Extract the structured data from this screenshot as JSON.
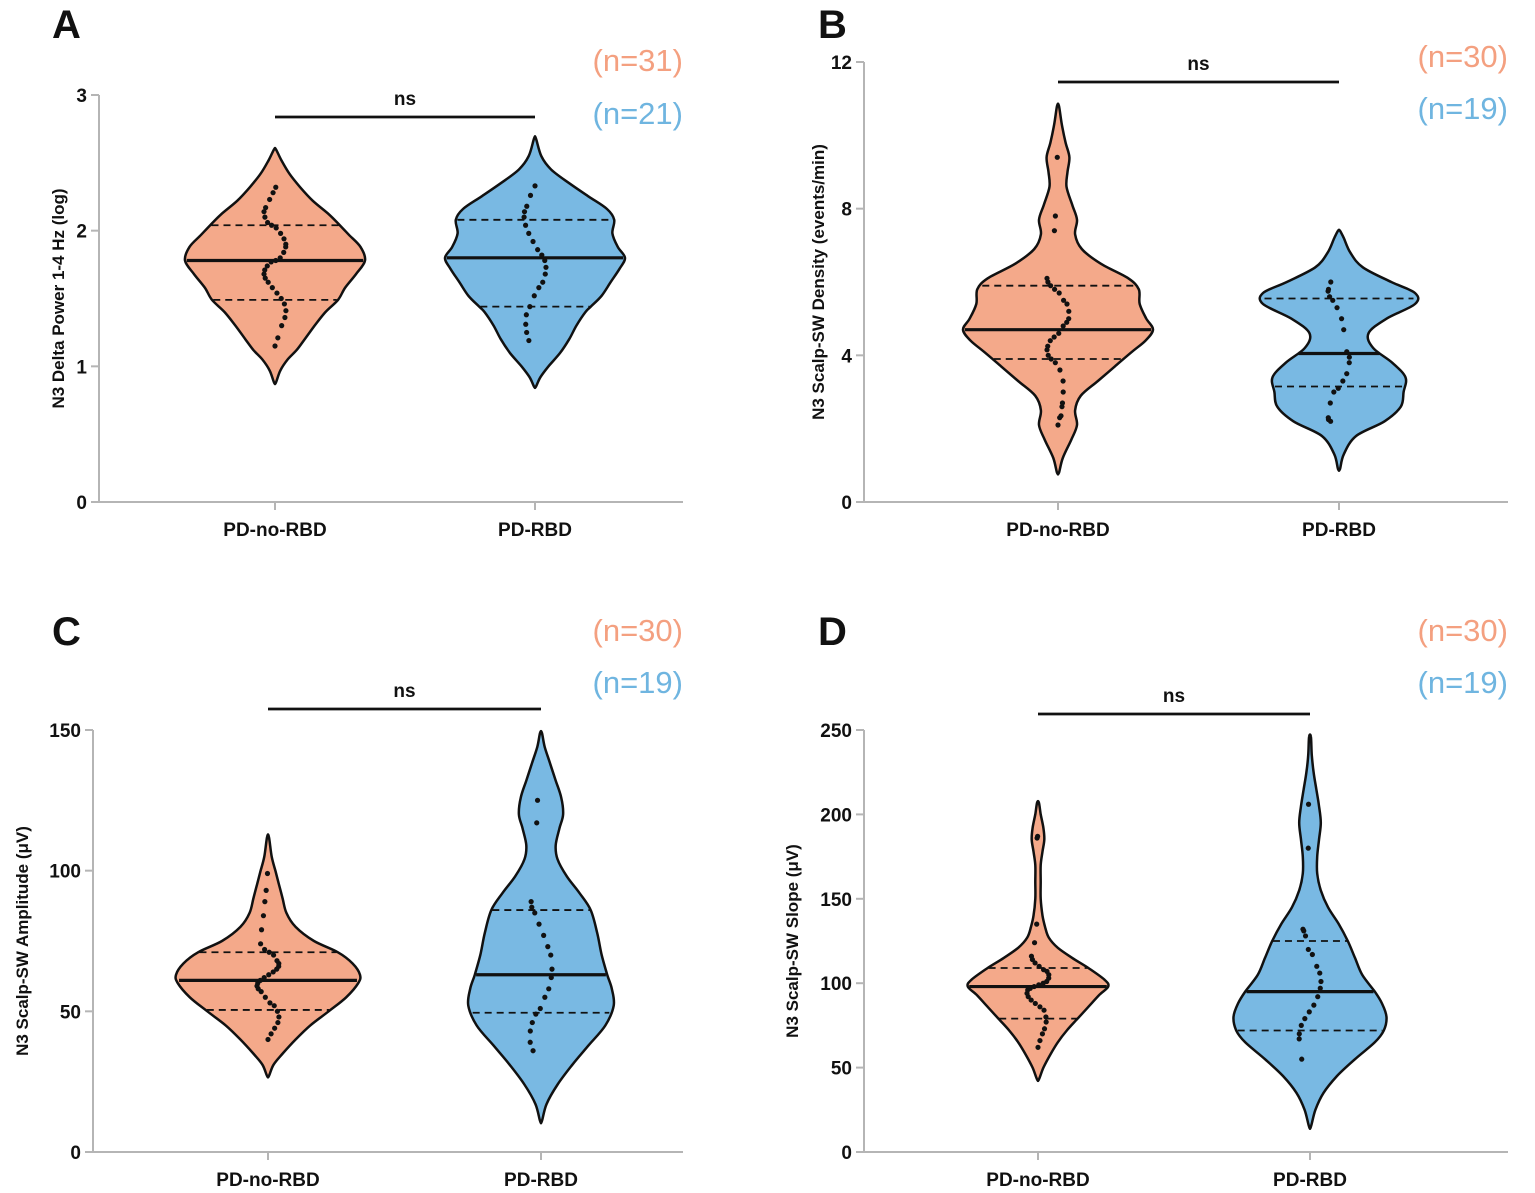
{
  "colors": {
    "group1": "#f4a98a",
    "group2": "#79b9e3",
    "n_group1": "#f4a080",
    "n_group2": "#6fb5e0",
    "axis": "#b5b5b5",
    "ink": "#111111"
  },
  "chart_data": [
    {
      "panel": "A",
      "type": "violin",
      "ylabel": "N3 Delta Power 1-4 Hz (log)",
      "ylim": [
        0,
        3
      ],
      "yticks": [
        "0",
        "1",
        "2",
        "3"
      ],
      "categories": [
        "PD-no-RBD",
        "PD-RBD"
      ],
      "n_labels": [
        "(n=31)",
        "(n=21)"
      ],
      "significance": "ns",
      "series": [
        {
          "name": "PD-no-RBD",
          "median": 1.78,
          "q1": 1.49,
          "q3": 2.04,
          "profile": [
            [
              0.88,
              0.01
            ],
            [
              0.97,
              0.06
            ],
            [
              1.05,
              0.14
            ],
            [
              1.12,
              0.24
            ],
            [
              1.2,
              0.33
            ],
            [
              1.3,
              0.44
            ],
            [
              1.4,
              0.56
            ],
            [
              1.49,
              0.7
            ],
            [
              1.58,
              0.78
            ],
            [
              1.68,
              0.9
            ],
            [
              1.78,
              1.0
            ],
            [
              1.88,
              0.95
            ],
            [
              1.97,
              0.82
            ],
            [
              2.04,
              0.72
            ],
            [
              2.12,
              0.6
            ],
            [
              2.22,
              0.42
            ],
            [
              2.32,
              0.28
            ],
            [
              2.42,
              0.16
            ],
            [
              2.52,
              0.07
            ],
            [
              2.6,
              0.01
            ]
          ],
          "points": [
            1.15,
            1.21,
            1.3,
            1.36,
            1.41,
            1.46,
            1.5,
            1.54,
            1.58,
            1.62,
            1.65,
            1.68,
            1.71,
            1.74,
            1.77,
            1.78,
            1.8,
            1.84,
            1.88,
            1.9,
            1.94,
            1.98,
            2.02,
            2.04,
            2.06,
            2.1,
            2.14,
            2.17,
            2.23,
            2.28,
            2.32
          ]
        },
        {
          "name": "PD-RBD",
          "median": 1.8,
          "q1": 1.44,
          "q3": 2.08,
          "profile": [
            [
              0.85,
              0.01
            ],
            [
              0.92,
              0.06
            ],
            [
              1.0,
              0.15
            ],
            [
              1.1,
              0.28
            ],
            [
              1.2,
              0.38
            ],
            [
              1.3,
              0.46
            ],
            [
              1.4,
              0.56
            ],
            [
              1.44,
              0.62
            ],
            [
              1.52,
              0.74
            ],
            [
              1.62,
              0.84
            ],
            [
              1.72,
              0.94
            ],
            [
              1.8,
              1.0
            ],
            [
              1.88,
              0.92
            ],
            [
              1.98,
              0.86
            ],
            [
              2.08,
              0.88
            ],
            [
              2.16,
              0.8
            ],
            [
              2.25,
              0.6
            ],
            [
              2.35,
              0.38
            ],
            [
              2.45,
              0.18
            ],
            [
              2.55,
              0.07
            ],
            [
              2.68,
              0.01
            ]
          ],
          "points": [
            1.19,
            1.25,
            1.31,
            1.38,
            1.44,
            1.52,
            1.58,
            1.62,
            1.68,
            1.73,
            1.78,
            1.82,
            1.86,
            1.92,
            1.98,
            2.04,
            2.1,
            2.14,
            2.18,
            2.26,
            2.33
          ]
        }
      ]
    },
    {
      "panel": "B",
      "type": "violin",
      "ylabel": "N3 Scalp-SW Density  (events/min)",
      "ylim": [
        0,
        12
      ],
      "yticks": [
        "0",
        "4",
        "8",
        "12"
      ],
      "categories": [
        "PD-no-RBD",
        "PD-RBD"
      ],
      "n_labels": [
        "(n=30)",
        "(n=19)"
      ],
      "significance": "ns",
      "series": [
        {
          "name": "PD-no-RBD",
          "median": 4.7,
          "q1": 3.9,
          "q3": 5.9,
          "profile": [
            [
              0.8,
              0.01
            ],
            [
              1.2,
              0.05
            ],
            [
              1.7,
              0.14
            ],
            [
              2.1,
              0.2
            ],
            [
              2.5,
              0.18
            ],
            [
              2.9,
              0.24
            ],
            [
              3.3,
              0.42
            ],
            [
              3.7,
              0.6
            ],
            [
              4.1,
              0.78
            ],
            [
              4.4,
              0.92
            ],
            [
              4.7,
              1.0
            ],
            [
              5.0,
              0.93
            ],
            [
              5.4,
              0.86
            ],
            [
              5.8,
              0.85
            ],
            [
              6.1,
              0.74
            ],
            [
              6.5,
              0.45
            ],
            [
              6.9,
              0.25
            ],
            [
              7.3,
              0.18
            ],
            [
              7.7,
              0.2
            ],
            [
              8.1,
              0.15
            ],
            [
              8.6,
              0.09
            ],
            [
              9.0,
              0.1
            ],
            [
              9.4,
              0.12
            ],
            [
              9.8,
              0.08
            ],
            [
              10.3,
              0.04
            ],
            [
              10.8,
              0.01
            ]
          ],
          "points": [
            2.1,
            2.3,
            2.35,
            2.6,
            2.7,
            3.0,
            3.3,
            3.6,
            3.8,
            3.9,
            4.0,
            4.15,
            4.25,
            4.4,
            4.5,
            4.6,
            4.8,
            4.9,
            5.0,
            5.2,
            5.4,
            5.5,
            5.7,
            5.8,
            5.9,
            6.0,
            6.1,
            7.4,
            7.8,
            9.4
          ]
        },
        {
          "name": "PD-RBD",
          "median": 4.05,
          "q1": 3.15,
          "q3": 5.55,
          "profile": [
            [
              0.9,
              0.01
            ],
            [
              1.3,
              0.05
            ],
            [
              1.8,
              0.18
            ],
            [
              2.2,
              0.48
            ],
            [
              2.6,
              0.65
            ],
            [
              3.0,
              0.68
            ],
            [
              3.4,
              0.7
            ],
            [
              3.8,
              0.56
            ],
            [
              4.2,
              0.36
            ],
            [
              4.6,
              0.31
            ],
            [
              5.0,
              0.5
            ],
            [
              5.4,
              0.8
            ],
            [
              5.7,
              0.8
            ],
            [
              6.0,
              0.55
            ],
            [
              6.4,
              0.25
            ],
            [
              6.8,
              0.12
            ],
            [
              7.2,
              0.05
            ],
            [
              7.4,
              0.01
            ]
          ],
          "points": [
            2.2,
            2.25,
            2.3,
            2.7,
            3.0,
            3.1,
            3.3,
            3.5,
            3.8,
            3.95,
            4.1,
            4.7,
            5.0,
            5.3,
            5.5,
            5.6,
            5.75,
            5.8,
            6.0
          ]
        }
      ]
    },
    {
      "panel": "C",
      "type": "violin",
      "ylabel": "N3 Scalp-SW Amplitude  (μV)",
      "ylim": [
        0,
        150
      ],
      "yticks": [
        "0",
        "50",
        "100",
        "150"
      ],
      "categories": [
        "PD-no-RBD",
        "PD-RBD"
      ],
      "n_labels": [
        "(n=30)",
        "(n=19)"
      ],
      "significance": "ns",
      "series": [
        {
          "name": "PD-no-RBD",
          "median": 61,
          "q1": 50.5,
          "q3": 71,
          "profile": [
            [
              27,
              0.01
            ],
            [
              31,
              0.06
            ],
            [
              35,
              0.16
            ],
            [
              40,
              0.3
            ],
            [
              45,
              0.46
            ],
            [
              50,
              0.66
            ],
            [
              55,
              0.85
            ],
            [
              60,
              0.98
            ],
            [
              63,
              1.0
            ],
            [
              67,
              0.92
            ],
            [
              71,
              0.76
            ],
            [
              75,
              0.5
            ],
            [
              80,
              0.3
            ],
            [
              85,
              0.2
            ],
            [
              90,
              0.16
            ],
            [
              95,
              0.12
            ],
            [
              100,
              0.08
            ],
            [
              105,
              0.04
            ],
            [
              112,
              0.01
            ]
          ],
          "points": [
            40,
            42,
            44,
            46,
            48,
            50,
            52,
            53,
            55,
            57,
            58,
            59,
            60,
            61,
            62,
            63,
            64,
            65,
            66,
            67,
            68,
            70,
            71,
            72,
            74,
            79,
            84,
            89,
            93,
            99
          ]
        },
        {
          "name": "PD-RBD",
          "median": 63,
          "q1": 49.5,
          "q3": 86,
          "profile": [
            [
              11,
              0.01
            ],
            [
              17,
              0.06
            ],
            [
              24,
              0.18
            ],
            [
              31,
              0.34
            ],
            [
              38,
              0.52
            ],
            [
              45,
              0.7
            ],
            [
              52,
              0.79
            ],
            [
              58,
              0.77
            ],
            [
              63,
              0.72
            ],
            [
              70,
              0.66
            ],
            [
              78,
              0.61
            ],
            [
              86,
              0.54
            ],
            [
              92,
              0.42
            ],
            [
              98,
              0.28
            ],
            [
              104,
              0.18
            ],
            [
              109,
              0.16
            ],
            [
              115,
              0.2
            ],
            [
              120,
              0.24
            ],
            [
              126,
              0.22
            ],
            [
              132,
              0.16
            ],
            [
              138,
              0.1
            ],
            [
              144,
              0.04
            ],
            [
              149,
              0.01
            ]
          ],
          "points": [
            36,
            39,
            43,
            46,
            49,
            51,
            55,
            58,
            62,
            65,
            70,
            73,
            77,
            81,
            85,
            87,
            89,
            117,
            125
          ]
        }
      ]
    },
    {
      "panel": "D",
      "type": "violin",
      "ylabel": "N3 Scalp-SW Slope (μV)",
      "ylim": [
        0,
        250
      ],
      "yticks": [
        "0",
        "50",
        "100",
        "150",
        "200",
        "250"
      ],
      "categories": [
        "PD-no-RBD",
        "PD-RBD"
      ],
      "n_labels": [
        "(n=30)",
        "(n=19)"
      ],
      "significance": "ns",
      "series": [
        {
          "name": "PD-no-RBD",
          "median": 98,
          "q1": 79,
          "q3": 109,
          "profile": [
            [
              43,
              0.01
            ],
            [
              50,
              0.06
            ],
            [
              58,
              0.14
            ],
            [
              65,
              0.22
            ],
            [
              72,
              0.32
            ],
            [
              79,
              0.44
            ],
            [
              86,
              0.56
            ],
            [
              93,
              0.68
            ],
            [
              98,
              0.78
            ],
            [
              102,
              0.74
            ],
            [
              109,
              0.56
            ],
            [
              115,
              0.38
            ],
            [
              121,
              0.22
            ],
            [
              127,
              0.12
            ],
            [
              133,
              0.08
            ],
            [
              140,
              0.05
            ],
            [
              150,
              0.03
            ],
            [
              160,
              0.03
            ],
            [
              170,
              0.03
            ],
            [
              178,
              0.05
            ],
            [
              185,
              0.07
            ],
            [
              192,
              0.06
            ],
            [
              200,
              0.03
            ],
            [
              207,
              0.01
            ]
          ],
          "points": [
            62,
            66,
            70,
            73,
            77,
            80,
            84,
            86,
            88,
            90,
            92,
            94,
            96,
            97,
            98,
            99,
            100,
            101,
            103,
            105,
            107,
            108,
            110,
            112,
            114,
            116,
            124,
            135,
            186,
            187
          ]
        },
        {
          "name": "PD-RBD",
          "median": 95,
          "q1": 72,
          "q3": 125,
          "profile": [
            [
              15,
              0.01
            ],
            [
              25,
              0.06
            ],
            [
              35,
              0.15
            ],
            [
              45,
              0.3
            ],
            [
              55,
              0.5
            ],
            [
              65,
              0.72
            ],
            [
              72,
              0.82
            ],
            [
              80,
              0.85
            ],
            [
              88,
              0.8
            ],
            [
              95,
              0.72
            ],
            [
              105,
              0.58
            ],
            [
              115,
              0.5
            ],
            [
              125,
              0.42
            ],
            [
              135,
              0.32
            ],
            [
              145,
              0.2
            ],
            [
              155,
              0.12
            ],
            [
              165,
              0.08
            ],
            [
              175,
              0.08
            ],
            [
              185,
              0.1
            ],
            [
              195,
              0.12
            ],
            [
              205,
              0.1
            ],
            [
              215,
              0.07
            ],
            [
              225,
              0.04
            ],
            [
              235,
              0.02
            ],
            [
              246,
              0.01
            ]
          ],
          "points": [
            55,
            67,
            70,
            75,
            79,
            83,
            87,
            92,
            97,
            101,
            106,
            110,
            117,
            120,
            128,
            131,
            132,
            180,
            206
          ]
        }
      ]
    }
  ]
}
